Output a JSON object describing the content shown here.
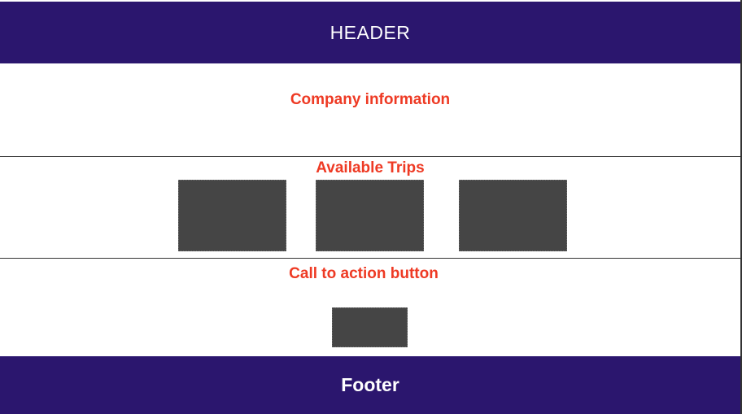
{
  "header": {
    "label": "HEADER"
  },
  "company": {
    "title": "Company information"
  },
  "trips": {
    "title": "Available Trips",
    "items": [
      {
        "kind": "image-placeholder"
      },
      {
        "kind": "image-placeholder"
      },
      {
        "kind": "image-placeholder"
      }
    ]
  },
  "cta": {
    "title": "Call to action button"
  },
  "footer": {
    "label": "Footer"
  },
  "colors": {
    "bar": "#2b166e",
    "accent_text": "#ee3a24",
    "placeholder": "#454545",
    "divider": "#333333"
  }
}
